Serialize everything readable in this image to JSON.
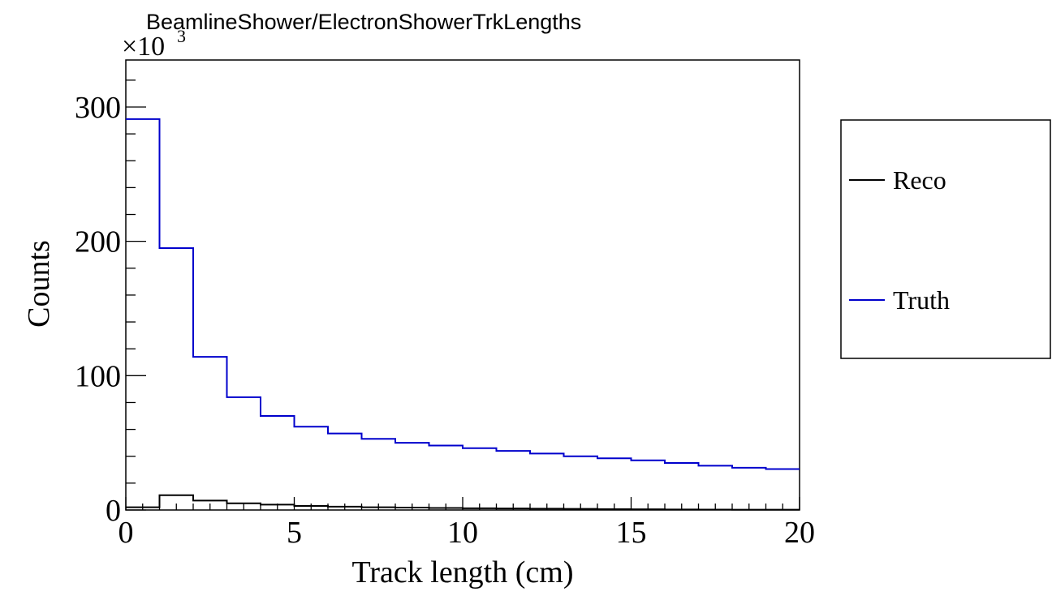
{
  "chart_data": {
    "type": "line",
    "title": "BeamlineShower/ElectronShowerTrkLengths",
    "xlabel": "Track length (cm)",
    "ylabel": "Counts",
    "y_multiplier_base": "×10",
    "y_multiplier_exponent": "3",
    "xlim": [
      0,
      20
    ],
    "ylim": [
      0,
      335
    ],
    "x_ticks": [
      0,
      5,
      10,
      15,
      20
    ],
    "y_ticks": [
      0,
      100,
      200,
      300
    ],
    "bin_edges": [
      0,
      1,
      2,
      3,
      4,
      5,
      6,
      7,
      8,
      9,
      10,
      11,
      12,
      13,
      14,
      15,
      16,
      17,
      18,
      19,
      20
    ],
    "grid": false,
    "legend_position": "right",
    "series": [
      {
        "name": "Reco",
        "color": "#000000",
        "values": [
          2,
          11,
          7,
          5,
          4,
          3,
          2.5,
          2,
          1.8,
          1.5,
          1.3,
          1.1,
          1,
          0.8,
          0.6,
          0.5,
          0.4,
          0.3,
          0.25,
          0.2
        ]
      },
      {
        "name": "Truth",
        "color": "#0000cc",
        "values": [
          291,
          195,
          114,
          84,
          70,
          62,
          57,
          53,
          50,
          48,
          46,
          44,
          42,
          40,
          38.5,
          37,
          35,
          33,
          31.5,
          30.5
        ]
      }
    ]
  }
}
